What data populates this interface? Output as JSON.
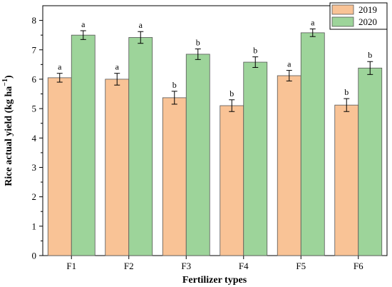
{
  "chart_data": {
    "type": "bar",
    "categories": [
      "F1",
      "F2",
      "F3",
      "F4",
      "F5",
      "F6"
    ],
    "series": [
      {
        "name": "2019",
        "color": "#f9c396",
        "values": [
          6.05,
          6.0,
          5.37,
          5.1,
          6.12,
          5.12
        ],
        "errors": [
          0.15,
          0.2,
          0.22,
          0.2,
          0.18,
          0.22
        ],
        "labels": [
          "a",
          "a",
          "b",
          "b",
          "a",
          "b"
        ]
      },
      {
        "name": "2020",
        "color": "#9dd49a",
        "values": [
          7.5,
          7.42,
          6.85,
          6.58,
          7.58,
          6.38
        ],
        "errors": [
          0.15,
          0.2,
          0.18,
          0.18,
          0.13,
          0.22
        ],
        "labels": [
          "a",
          "a",
          "b",
          "b",
          "a",
          "b"
        ]
      }
    ],
    "xlabel": "Fertilizer types",
    "ylabel": "Rice actual yield (kg ha",
    "ylabel_superscript": "−1",
    "ylabel_close": ")",
    "ylim": [
      0,
      8.5
    ],
    "yticks": [
      0,
      1,
      2,
      3,
      4,
      5,
      6,
      7,
      8
    ],
    "legend_position": "top-right"
  }
}
